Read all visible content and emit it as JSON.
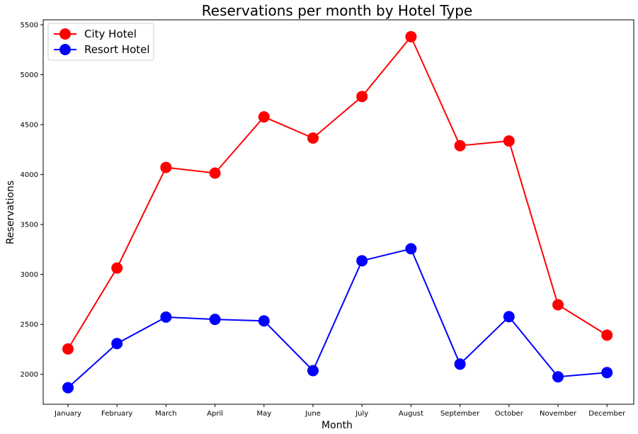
{
  "chart_data": {
    "type": "line",
    "title": "Reservations per month by Hotel Type",
    "xlabel": "Month",
    "ylabel": "Reservations",
    "categories": [
      "January",
      "February",
      "March",
      "April",
      "May",
      "June",
      "July",
      "August",
      "September",
      "October",
      "November",
      "December"
    ],
    "ylim": [
      1700,
      5550
    ],
    "yticks": [
      2000,
      2500,
      3000,
      3500,
      4000,
      4500,
      5000,
      5500
    ],
    "grid": false,
    "legend_position": "top-left",
    "series": [
      {
        "name": "City Hotel",
        "color": "#ff0000",
        "values": [
          2254,
          3064,
          4072,
          4015,
          4578,
          4366,
          4782,
          5381,
          4290,
          4337,
          2696,
          2392
        ]
      },
      {
        "name": "Resort Hotel",
        "color": "#0000ff",
        "values": [
          1866,
          2308,
          2573,
          2550,
          2535,
          2037,
          3137,
          3257,
          2102,
          2577,
          1975,
          2017
        ]
      }
    ]
  }
}
